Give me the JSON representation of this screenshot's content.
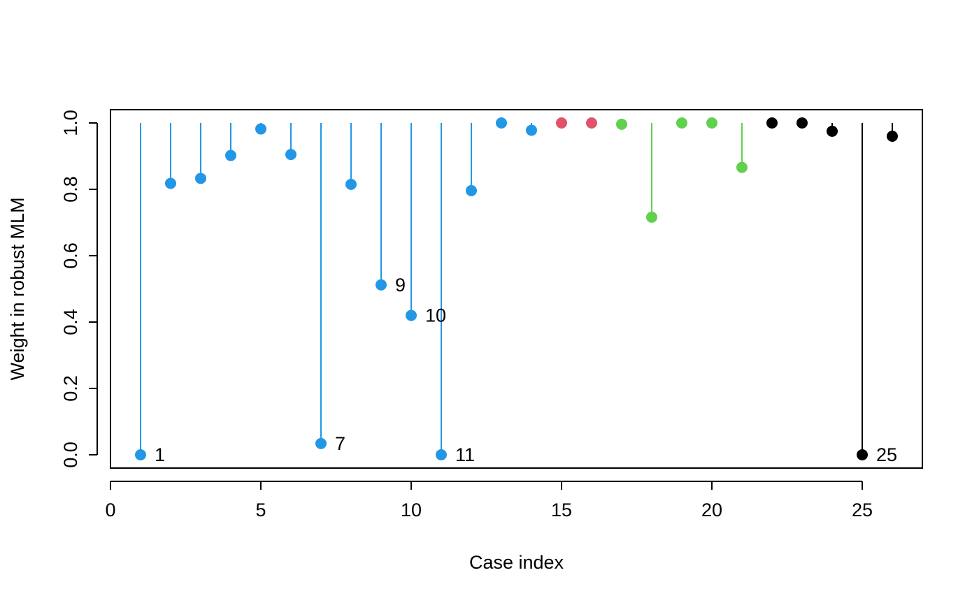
{
  "chart_data": {
    "type": "scatter",
    "style": "needle",
    "title": "",
    "xlabel": "Case index",
    "ylabel": "Weight in robust MLM",
    "xlim": [
      0,
      27
    ],
    "ylim": [
      0,
      1
    ],
    "baseline": 1.0,
    "xticks": [
      0,
      5,
      10,
      15,
      20,
      25
    ],
    "yticks": [
      0.0,
      0.2,
      0.4,
      0.6,
      0.8,
      1.0
    ],
    "xtick_labels": [
      "0",
      "5",
      "10",
      "15",
      "20",
      "25"
    ],
    "ytick_labels": [
      "0.0",
      "0.2",
      "0.4",
      "0.6",
      "0.8",
      "1.0"
    ],
    "grid": false,
    "groups": [
      {
        "name": "group-1",
        "color": "#2297E6"
      },
      {
        "name": "group-2",
        "color": "#DF536B"
      },
      {
        "name": "group-3",
        "color": "#61D04F"
      },
      {
        "name": "group-4",
        "color": "#000000"
      }
    ],
    "points": [
      {
        "x": 1,
        "y": 0.0,
        "group": 0,
        "label": "1"
      },
      {
        "x": 2,
        "y": 0.818,
        "group": 0
      },
      {
        "x": 3,
        "y": 0.833,
        "group": 0
      },
      {
        "x": 4,
        "y": 0.902,
        "group": 0
      },
      {
        "x": 5,
        "y": 0.982,
        "group": 0
      },
      {
        "x": 6,
        "y": 0.905,
        "group": 0
      },
      {
        "x": 7,
        "y": 0.034,
        "group": 0,
        "label": "7"
      },
      {
        "x": 8,
        "y": 0.815,
        "group": 0
      },
      {
        "x": 9,
        "y": 0.512,
        "group": 0,
        "label": "9"
      },
      {
        "x": 10,
        "y": 0.42,
        "group": 0,
        "label": "10"
      },
      {
        "x": 11,
        "y": 0.0,
        "group": 0,
        "label": "11"
      },
      {
        "x": 12,
        "y": 0.796,
        "group": 0
      },
      {
        "x": 13,
        "y": 1.0,
        "group": 0
      },
      {
        "x": 14,
        "y": 0.978,
        "group": 0
      },
      {
        "x": 15,
        "y": 1.0,
        "group": 1
      },
      {
        "x": 16,
        "y": 1.0,
        "group": 1
      },
      {
        "x": 17,
        "y": 0.996,
        "group": 2
      },
      {
        "x": 18,
        "y": 0.716,
        "group": 2
      },
      {
        "x": 19,
        "y": 1.0,
        "group": 2
      },
      {
        "x": 20,
        "y": 1.0,
        "group": 2
      },
      {
        "x": 21,
        "y": 0.866,
        "group": 2
      },
      {
        "x": 22,
        "y": 1.0,
        "group": 3
      },
      {
        "x": 23,
        "y": 1.0,
        "group": 3
      },
      {
        "x": 24,
        "y": 0.975,
        "group": 3
      },
      {
        "x": 25,
        "y": 0.0,
        "group": 3,
        "label": "25"
      },
      {
        "x": 26,
        "y": 0.96,
        "group": 3
      }
    ]
  }
}
